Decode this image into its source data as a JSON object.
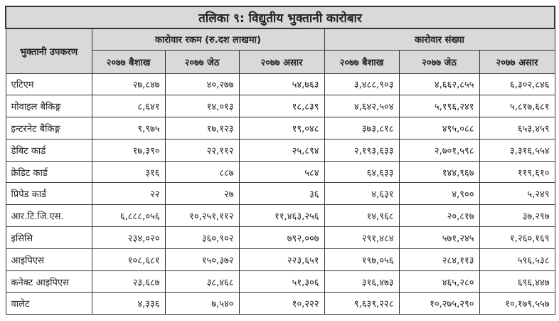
{
  "title": "तलिका ९: विद्युतीय भुक्तानी कारोबार",
  "header": {
    "instrument": "भुक्तानी उपकरण",
    "amount_group": "कारोवार रकम (रु.दश लाखमा)",
    "count_group": "कारोवार संख्या",
    "months": [
      "२०७७ बैशाख",
      "२०७७ जेठ",
      "२०७७ असार"
    ]
  },
  "rows": [
    {
      "label": "एटिएम",
      "amount": [
        "२७,८४७",
        "४०,२७७",
        "५४,७६३"
      ],
      "count": [
        "३,४८८,९०३",
        "४,६६२,८५५",
        "६,३०२,८४६"
      ]
    },
    {
      "label": "मोवाइल बैकिङ्ग",
      "amount": [
        "८,६४१",
        "१४,०१३",
        "१८,८३९"
      ],
      "count": [
        "४,६४२,५०४",
        "५,१९६,२४१",
        "५,८१७,६८१"
      ]
    },
    {
      "label": "इन्टरनेट बैकिङ्ग",
      "amount": [
        "९,९७५",
        "१७,१२३",
        "१९,०४८"
      ],
      "count": [
        "३७३,८१८",
        "४९५,०८८",
        "६५३,४५९"
      ]
    },
    {
      "label": "डेबिट कार्ड",
      "amount": [
        "१७,३९०",
        "२२,११२",
        "२५,८९४"
      ],
      "count": [
        "२,१९३,६३३",
        "२,७०१,५९८",
        "३,३१६,५५४"
      ]
    },
    {
      "label": "क्रेडिट कार्ड",
      "amount": [
        "३१६",
        "८८७",
        "५८४"
      ],
      "count": [
        "६४,६३३",
        "१४४,९६७",
        "११९,६१०"
      ]
    },
    {
      "label": "प्रिपेड कार्ड",
      "amount": [
        "२२",
        "२७",
        "३६"
      ],
      "count": [
        "४,६३१",
        "४,९००",
        "५,२४९"
      ]
    },
    {
      "label": "आर.टि.जि.एस.",
      "amount": [
        "६,८८८,०५६",
        "१०,२५१,११२",
        "११,४६३,२५६"
      ],
      "count": [
        "१४,९६८",
        "२०,८१७",
        "३७,२९७"
      ]
    },
    {
      "label": "इसिसि",
      "amount": [
        "२३४,०२०",
        "३६०,९०२",
        "७९२,००७"
      ],
      "count": [
        "२९१,४८४",
        "५७१,२४५",
        "१,२६०,१६९"
      ]
    },
    {
      "label": "आइपिएस",
      "amount": [
        "१०८,६८१",
        "१५०,३७२",
        "२२३,६५१"
      ],
      "count": [
        "१९७,०५६",
        "२८४,११३",
        "५९६,५३८"
      ]
    },
    {
      "label": "कनेक्ट आइपिएस",
      "amount": [
        "२३,६८७",
        "३८,४६८",
        "५१,३०६"
      ],
      "count": [
        "३१६,४७३",
        "४६५,२८०",
        "६९६,४४७"
      ]
    },
    {
      "label": "वालेट",
      "amount": [
        "४,३३६",
        "७,५४०",
        "१०,२२२"
      ],
      "count": [
        "९,६३९,२२८",
        "१०,२७५,२९०",
        "१०,१७९,५५७"
      ]
    }
  ]
}
